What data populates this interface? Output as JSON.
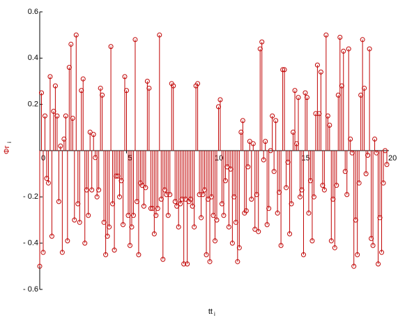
{
  "chart_data": {
    "type": "stem",
    "x_label": "tt",
    "x_label_sub": "i",
    "y_label": "Φr",
    "y_label_sub": "i",
    "color": "#c00000",
    "xlim": [
      0,
      20
    ],
    "xticks": [
      0,
      5,
      10,
      15,
      20
    ],
    "ylim": [
      -0.6,
      0.6
    ],
    "yticks": [
      0.6,
      0.4,
      0.2,
      {
        "value": -0.2,
        "label": "- 0.2"
      },
      {
        "value": -0.4,
        "label": "- 0.4"
      },
      {
        "value": -0.6,
        "label": "- 0.6"
      }
    ],
    "x": [
      0,
      0.1,
      0.2,
      0.3,
      0.4,
      0.5,
      0.6,
      0.7,
      0.8,
      0.9,
      1,
      1.1,
      1.2,
      1.3,
      1.4,
      1.5,
      1.6,
      1.7,
      1.8,
      1.9,
      2,
      2.1,
      2.2,
      2.3,
      2.4,
      2.5,
      2.6,
      2.7,
      2.8,
      2.9,
      3,
      3.1,
      3.2,
      3.3,
      3.4,
      3.5,
      3.6,
      3.7,
      3.8,
      3.9,
      4,
      4.1,
      4.2,
      4.3,
      4.4,
      4.5,
      4.6,
      4.7,
      4.8,
      4.9,
      5,
      5.1,
      5.2,
      5.3,
      5.4,
      5.5,
      5.6,
      5.7,
      5.8,
      5.9,
      6,
      6.1,
      6.2,
      6.3,
      6.4,
      6.5,
      6.6,
      6.7,
      6.8,
      6.9,
      7,
      7.1,
      7.2,
      7.3,
      7.4,
      7.5,
      7.6,
      7.7,
      7.8,
      7.9,
      8,
      8.1,
      8.2,
      8.3,
      8.4,
      8.5,
      8.6,
      8.7,
      8.8,
      8.9,
      9,
      9.1,
      9.2,
      9.3,
      9.4,
      9.5,
      9.6,
      9.7,
      9.8,
      9.9,
      10,
      10.1,
      10.2,
      10.3,
      10.4,
      10.5,
      10.6,
      10.7,
      10.8,
      10.9,
      11,
      11.1,
      11.2,
      11.3,
      11.4,
      11.5,
      11.6,
      11.7,
      11.8,
      11.9,
      12,
      12.1,
      12.2,
      12.3,
      12.4,
      12.5,
      12.6,
      12.7,
      12.8,
      12.9,
      13,
      13.1,
      13.2,
      13.3,
      13.4,
      13.5,
      13.6,
      13.7,
      13.8,
      13.9,
      14,
      14.1,
      14.2,
      14.3,
      14.4,
      14.5,
      14.6,
      14.7,
      14.8,
      14.9,
      15,
      15.1,
      15.2,
      15.3,
      15.4,
      15.5,
      15.6,
      15.7,
      15.8,
      15.9,
      16,
      16.1,
      16.2,
      16.3,
      16.4,
      16.5,
      16.6,
      16.7,
      16.8,
      16.9,
      17,
      17.1,
      17.2,
      17.3,
      17.4,
      17.5,
      17.6,
      17.7,
      17.8,
      17.9,
      18,
      18.1,
      18.2,
      18.3,
      18.4,
      18.5,
      18.6,
      18.7,
      18.8,
      18.9,
      19,
      19.1,
      19.2,
      19.3,
      19.4,
      19.5,
      19.6,
      19.7,
      19.8,
      19.9,
      20
    ],
    "values": [
      -0.5,
      0.25,
      -0.44,
      0.15,
      -0.12,
      -0.14,
      0.32,
      -0.37,
      0.17,
      0.28,
      0.15,
      -0.22,
      0.02,
      -0.44,
      0.05,
      0.15,
      -0.39,
      0.36,
      0.46,
      0.14,
      -0.3,
      0.5,
      -0.23,
      -0.31,
      0.26,
      0.31,
      -0.4,
      -0.17,
      -0.28,
      0.08,
      -0.17,
      0.07,
      -0.03,
      -0.2,
      -0.17,
      0.27,
      0.24,
      -0.31,
      -0.45,
      -0.37,
      -0.33,
      0.45,
      -0.23,
      -0.43,
      -0.11,
      -0.11,
      -0.2,
      -0.13,
      -0.32,
      0.32,
      0.26,
      -0.28,
      -0.41,
      -0.33,
      -0.28,
      0.48,
      -0.22,
      -0.45,
      -0.14,
      -0.15,
      -0.24,
      -0.16,
      0.3,
      0.27,
      -0.25,
      -0.25,
      -0.36,
      -0.28,
      -0.25,
      0.5,
      -0.21,
      -0.47,
      -0.17,
      -0.19,
      -0.28,
      -0.19,
      0.29,
      0.28,
      -0.22,
      -0.24,
      -0.33,
      -0.23,
      -0.21,
      -0.49,
      -0.21,
      -0.49,
      -0.22,
      -0.21,
      -0.24,
      -0.33,
      0.28,
      0.29,
      -0.19,
      -0.29,
      -0.19,
      -0.17,
      -0.45,
      -0.21,
      -0.48,
      -0.2,
      -0.28,
      -0.39,
      -0.3,
      0.19,
      0.22,
      -0.23,
      -0.28,
      -0.13,
      -0.07,
      -0.33,
      -0.08,
      -0.4,
      -0.2,
      -0.31,
      -0.48,
      -0.42,
      0.08,
      0.13,
      -0.27,
      -0.26,
      -0.07,
      0.04,
      -0.21,
      0.03,
      -0.34,
      -0.19,
      -0.35,
      0.44,
      0.47,
      -0.04,
      0.04,
      -0.32,
      -0.25,
      0.0,
      0.15,
      -0.09,
      0.13,
      -0.27,
      -0.18,
      -0.41,
      0.35,
      0.35,
      -0.16,
      -0.05,
      -0.36,
      -0.23,
      0.08,
      0.26,
      0.03,
      0.23,
      -0.2,
      -0.17,
      -0.45,
      0.25,
      0.23,
      -0.27,
      -0.13,
      -0.39,
      -0.2,
      0.16,
      0.37,
      0.16,
      0.34,
      -0.15,
      -0.17,
      0.5,
      0.15,
      0.11,
      -0.39,
      -0.21,
      -0.42,
      -0.15,
      0.24,
      0.49,
      0.28,
      0.43,
      -0.09,
      -0.19,
      0.44,
      0.05,
      -0.01,
      -0.5,
      -0.3,
      -0.45,
      -0.14,
      0.24,
      0.48,
      0.27,
      -0.1,
      -0.02,
      0.44,
      -0.38,
      -0.41,
      0.05,
      -0.01,
      -0.49,
      -0.29,
      -0.44,
      -0.14,
      0.0,
      -0.06
    ]
  }
}
